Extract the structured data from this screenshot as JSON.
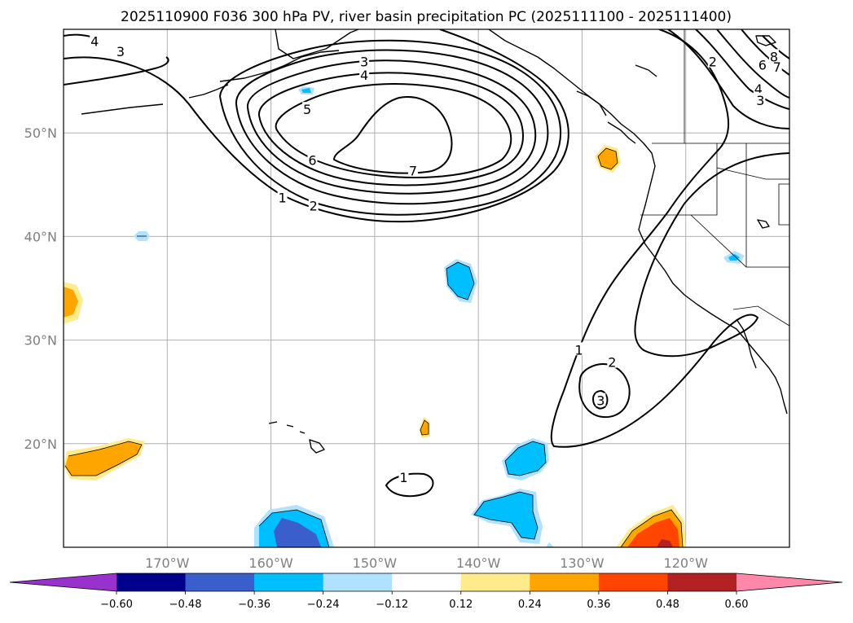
{
  "chart_data": {
    "type": "contour_map",
    "title": "2025110900 F036 300 hPa PV, river basin precipitation PC (2025111100 - 2025111400)",
    "lon_range": [
      -180,
      -110
    ],
    "lat_range": [
      10,
      60
    ],
    "lon_ticks": [
      {
        "value": -170,
        "label": "170°W"
      },
      {
        "value": -160,
        "label": "160°W"
      },
      {
        "value": -150,
        "label": "150°W"
      },
      {
        "value": -140,
        "label": "140°W"
      },
      {
        "value": -130,
        "label": "130°W"
      },
      {
        "value": -120,
        "label": "120°W"
      }
    ],
    "lat_ticks": [
      {
        "value": 20,
        "label": "20°N"
      },
      {
        "value": 30,
        "label": "30°N"
      },
      {
        "value": 40,
        "label": "40°N"
      },
      {
        "value": 50,
        "label": "50°N"
      }
    ],
    "grid": true,
    "contour_field": "300 hPa PV",
    "contour_levels": [
      1,
      2,
      3,
      4,
      5,
      6,
      7,
      8
    ],
    "contour_labels": [
      {
        "text": "4",
        "lon": -177,
        "lat": 58.8
      },
      {
        "text": "3",
        "lon": -174.5,
        "lat": 57.8
      },
      {
        "text": "3",
        "lon": -151,
        "lat": 56.8
      },
      {
        "text": "4",
        "lon": -151,
        "lat": 55.5
      },
      {
        "text": "5",
        "lon": -156.5,
        "lat": 52.2
      },
      {
        "text": "6",
        "lon": -156,
        "lat": 47.3
      },
      {
        "text": "7",
        "lon": -146.3,
        "lat": 46.3
      },
      {
        "text": "1",
        "lon": -158.9,
        "lat": 43.7
      },
      {
        "text": "2",
        "lon": -155.9,
        "lat": 42.9
      },
      {
        "text": "2",
        "lon": -117.4,
        "lat": 56.8
      },
      {
        "text": "6",
        "lon": -112.6,
        "lat": 56.5
      },
      {
        "text": "7",
        "lon": -111.2,
        "lat": 56.3
      },
      {
        "text": "8",
        "lon": -111.5,
        "lat": 57.3
      },
      {
        "text": "4",
        "lon": -113,
        "lat": 54.2
      },
      {
        "text": "3",
        "lon": -112.8,
        "lat": 53.1
      },
      {
        "text": "1",
        "lon": -130.3,
        "lat": 29
      },
      {
        "text": "2",
        "lon": -127.1,
        "lat": 27.8
      },
      {
        "text": "3",
        "lon": -128.2,
        "lat": 24.1
      },
      {
        "text": "1",
        "lon": -147.2,
        "lat": 16.7
      }
    ],
    "fill_field": "river basin precipitation PC",
    "colorbar": {
      "ticks": [
        "−0.60",
        "−0.48",
        "−0.36",
        "−0.24",
        "−0.12",
        "0.12",
        "0.24",
        "0.36",
        "0.48",
        "0.60"
      ],
      "colors": [
        "#9932cc",
        "#00008b",
        "#3a5fcd",
        "#00bfff",
        "#b0e2ff",
        "#ffffff",
        "#ffeb8c",
        "#ffa500",
        "#ff4500",
        "#b22222",
        "#ff88aa"
      ],
      "extend": "both"
    }
  }
}
